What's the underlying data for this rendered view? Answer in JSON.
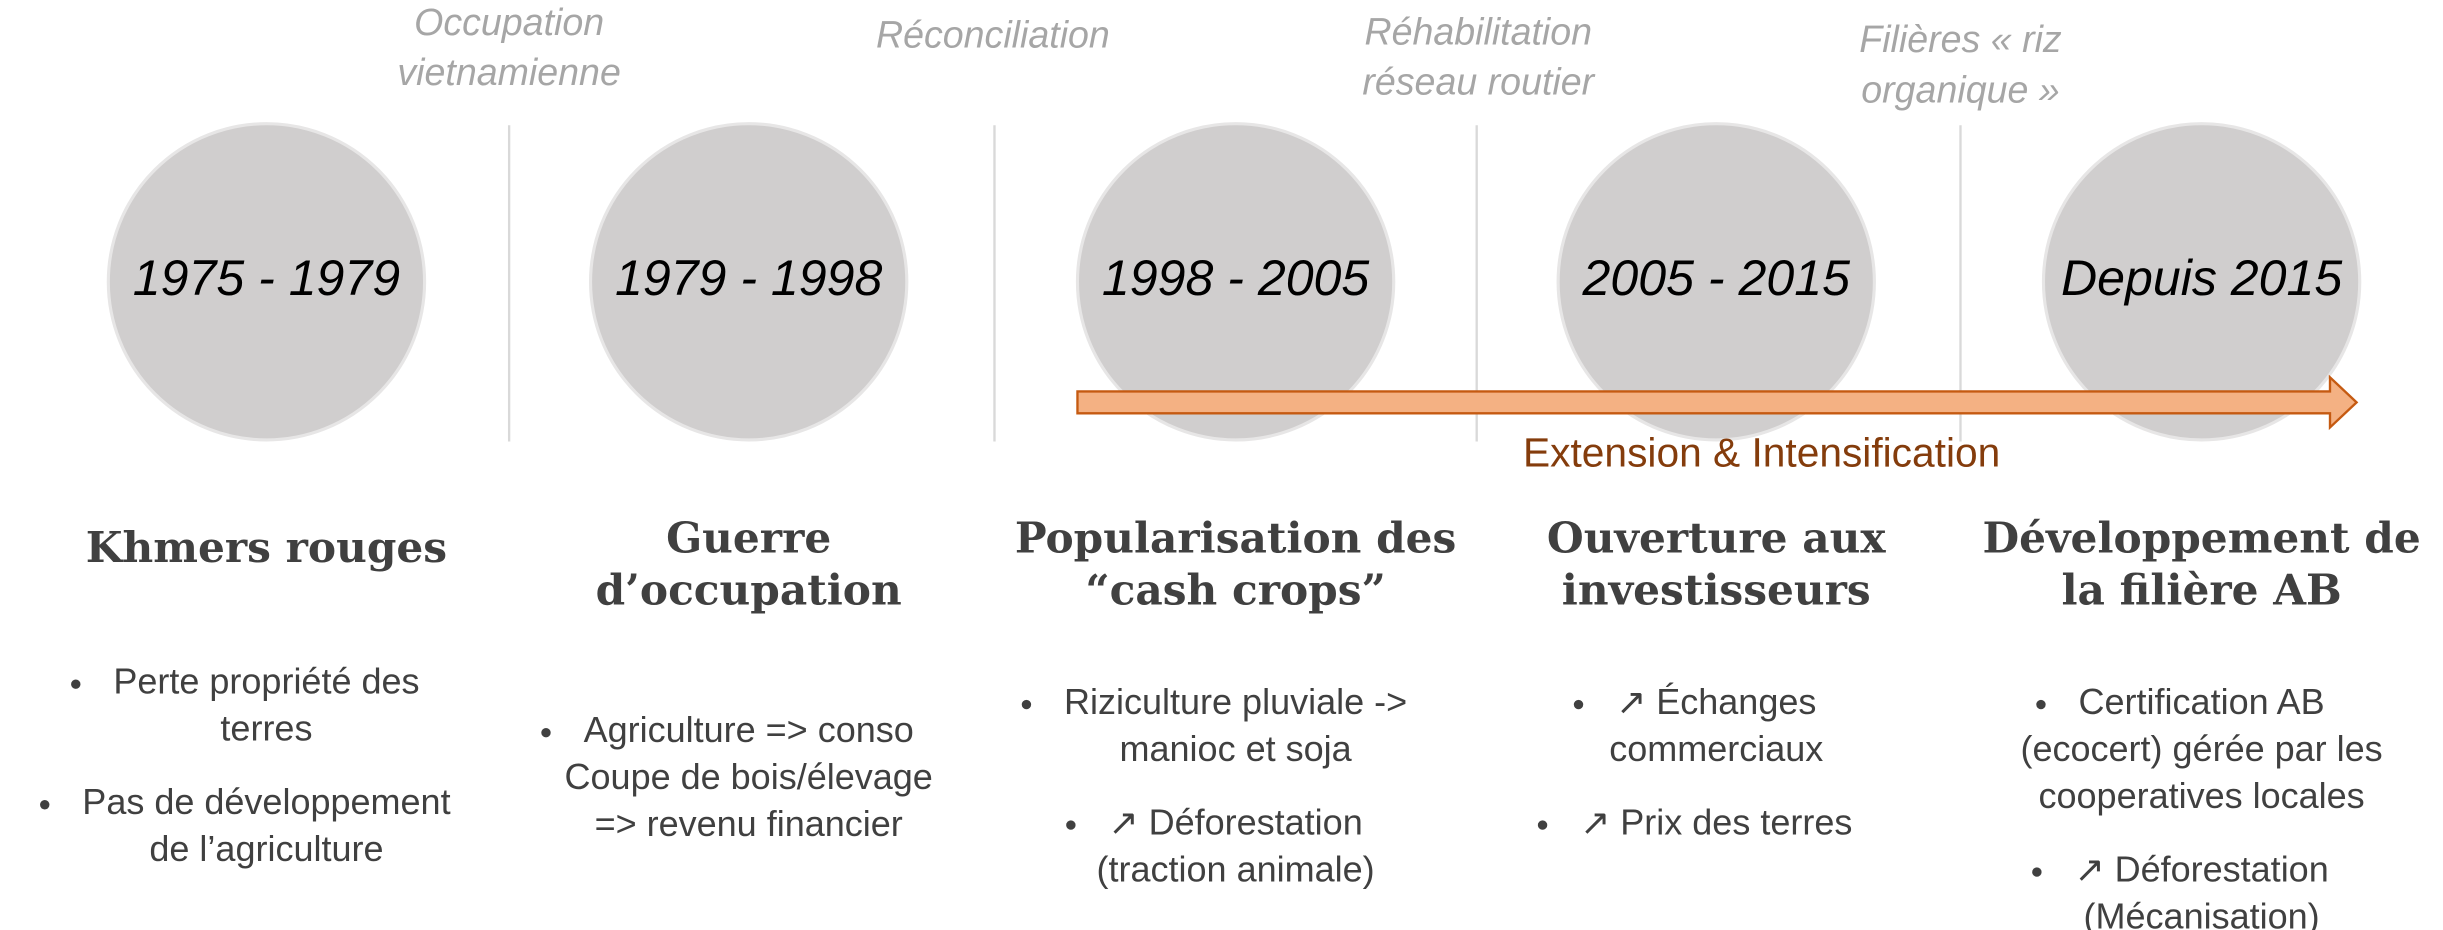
{
  "transitions": [
    {
      "lines": [
        "Occupation",
        "vietnamienne"
      ]
    },
    {
      "lines": [
        "Réconciliation"
      ]
    },
    {
      "lines": [
        "Réhabilitation",
        "réseau routier"
      ]
    },
    {
      "lines": [
        "Filières « riz",
        "organique »"
      ]
    }
  ],
  "periods": [
    {
      "years": "1975 - 1979",
      "title": [
        "Khmers rouges"
      ],
      "bullets": [
        [
          "Perte propriété des",
          "terres"
        ],
        [
          "Pas de développement",
          "de l’agriculture"
        ]
      ]
    },
    {
      "years": "1979 - 1998",
      "title": [
        "Guerre",
        "d’occupation"
      ],
      "bullets": [
        [
          "Agriculture => conso",
          "Coupe de bois/élevage",
          "=> revenu financier"
        ]
      ]
    },
    {
      "years": "1998 - 2005",
      "title": [
        "Popularisation des",
        "“cash crops”"
      ],
      "bullets": [
        [
          "Riziculture pluviale ->",
          "manioc et soja"
        ],
        [
          "↗  Déforestation",
          "(traction animale)"
        ]
      ]
    },
    {
      "years": "2005 - 2015",
      "title": [
        "Ouverture aux",
        "investisseurs"
      ],
      "bullets": [
        [
          "↗ Échanges",
          "commerciaux"
        ],
        [
          "↗ Prix des terres"
        ]
      ]
    },
    {
      "years": "Depuis 2015",
      "title": [
        "Développement de",
        "la filière AB"
      ],
      "bullets": [
        [
          "Certification AB",
          "(ecocert) gérée par les",
          "cooperatives locales"
        ],
        [
          "↗ Déforestation",
          "(Mécanisation)"
        ]
      ]
    }
  ],
  "arrow_label": "Extension & Intensification"
}
